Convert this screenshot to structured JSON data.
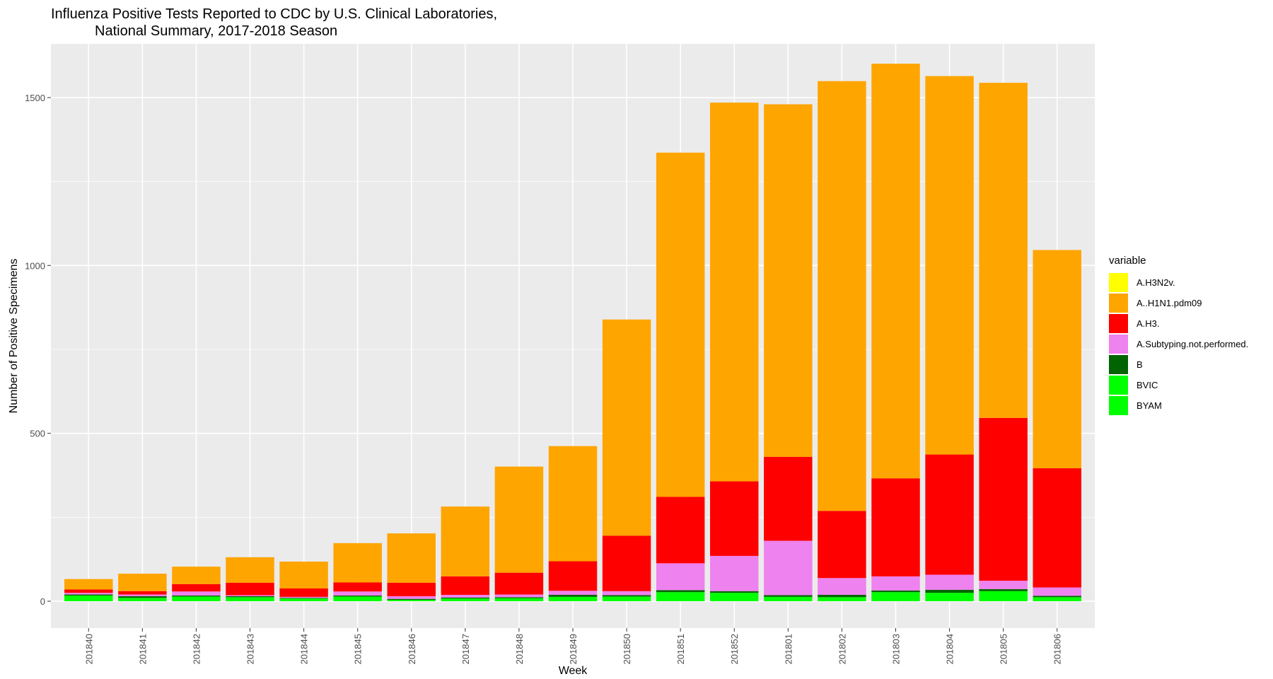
{
  "title_line1": "Influenza Positive Tests Reported to CDC by U.S. Clinical Laboratories,",
  "title_line2": "National Summary, 2017-2018 Season",
  "chart_data": {
    "type": "bar",
    "stacked": true,
    "title": "Influenza Positive Tests Reported to CDC by U.S. Clinical Laboratories, National Summary, 2017-2018 Season",
    "xlabel": "Week",
    "ylabel": "Number of Positive Specimens",
    "ylim": [
      -80,
      1660
    ],
    "yticks": [
      0,
      500,
      1000,
      1500
    ],
    "grid": true,
    "legend_title": "variable",
    "legend_position": "right",
    "categories": [
      "201840",
      "201841",
      "201842",
      "201843",
      "201844",
      "201845",
      "201846",
      "201847",
      "201848",
      "201849",
      "201850",
      "201851",
      "201852",
      "201801",
      "201802",
      "201803",
      "201804",
      "201805",
      "201806"
    ],
    "series": [
      {
        "name": "A.H3N2v.",
        "color": "#ffff00",
        "values": [
          0,
          0,
          0,
          0,
          0,
          0,
          0,
          0,
          0,
          0,
          0,
          0,
          0,
          0,
          0,
          0,
          0,
          0,
          0
        ]
      },
      {
        "name": "A..H1N1.pdm09",
        "color": "#ffa500",
        "values": [
          31,
          52,
          52,
          76,
          80,
          117,
          147,
          208,
          316,
          343,
          644,
          1025,
          1128,
          1050,
          1280,
          1235,
          1127,
          998,
          650
        ]
      },
      {
        "name": "A.H3.",
        "color": "#ff0000",
        "values": [
          10,
          10,
          22,
          37,
          25,
          27,
          40,
          55,
          65,
          88,
          165,
          198,
          222,
          250,
          200,
          292,
          358,
          485,
          355
        ]
      },
      {
        "name": "A.Subtyping.not.performed.",
        "color": "#ee82ee",
        "values": [
          5,
          5,
          12,
          3,
          3,
          12,
          8,
          8,
          8,
          12,
          12,
          80,
          105,
          162,
          50,
          42,
          45,
          25,
          25
        ]
      },
      {
        "name": "B",
        "color": "#006400",
        "values": [
          3,
          5,
          3,
          3,
          2,
          3,
          3,
          3,
          3,
          6,
          4,
          6,
          5,
          5,
          7,
          5,
          9,
          6,
          4
        ]
      },
      {
        "name": "BVIC",
        "color": "#00ff00",
        "values": [
          0,
          0,
          0,
          0,
          0,
          0,
          0,
          0,
          0,
          0,
          0,
          0,
          0,
          0,
          0,
          0,
          0,
          0,
          0
        ]
      },
      {
        "name": "BYAM",
        "color": "#00ff00",
        "values": [
          17,
          10,
          14,
          12,
          8,
          14,
          4,
          8,
          9,
          13,
          14,
          27,
          25,
          13,
          12,
          27,
          25,
          30,
          12
        ]
      }
    ]
  },
  "colors": {
    "panel_background": "#ebebeb",
    "gridline": "#ffffff",
    "tick_text": "#4d4d4d"
  }
}
